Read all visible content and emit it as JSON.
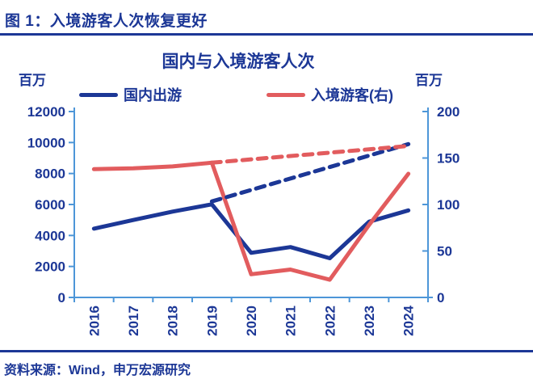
{
  "header": {
    "title": "图 1：入境游客人次恢复更好"
  },
  "footer": {
    "source": "资料来源：Wind，申万宏源研究"
  },
  "colors": {
    "navy": "#1C3796",
    "red": "#E25C5E",
    "axis": "#4D96D8",
    "rule": "#1C3796"
  },
  "chart_data": {
    "type": "line",
    "title": "国内与入境游客人次",
    "categories": [
      "2016",
      "2017",
      "2018",
      "2019",
      "2020",
      "2021",
      "2022",
      "2023",
      "2024"
    ],
    "left_axis": {
      "unit": "百万",
      "min": 0,
      "max": 12000,
      "ticks": [
        12000,
        10000,
        8000,
        6000,
        4000,
        2000,
        0
      ]
    },
    "right_axis": {
      "unit": "百万",
      "min": 0,
      "max": 200,
      "ticks": [
        200,
        150,
        100,
        50,
        0
      ]
    },
    "axis_color": "#4D96D8",
    "grid": false,
    "legend_position": "top",
    "legend": [
      {
        "label": "国内出游",
        "color": "#1C3796"
      },
      {
        "label": "入境游客(右)",
        "color": "#E25C5E"
      }
    ],
    "series": [
      {
        "id": "domestic-actual",
        "name": "国内出游",
        "axis": "left",
        "line": "solid",
        "color": "#1C3796",
        "x": [
          "2016",
          "2017",
          "2018",
          "2019",
          "2020",
          "2021",
          "2022",
          "2023",
          "2024"
        ],
        "values": [
          4440,
          5000,
          5540,
          6010,
          2880,
          3250,
          2530,
          4890,
          5620
        ]
      },
      {
        "id": "inbound-actual",
        "name": "入境游客(右)",
        "axis": "right",
        "line": "solid",
        "color": "#E25C5E",
        "x": [
          "2016",
          "2017",
          "2018",
          "2019",
          "2020",
          "2021",
          "2022",
          "2023",
          "2024"
        ],
        "values": [
          138,
          139,
          141,
          145,
          25,
          30,
          19,
          78,
          133
        ]
      },
      {
        "id": "domestic-trend",
        "name": "国内出游(趋势外推)",
        "axis": "left",
        "line": "dashed",
        "color": "#1C3796",
        "x": [
          "2019",
          "2024"
        ],
        "values": [
          6200,
          9900
        ]
      },
      {
        "id": "inbound-trend",
        "name": "入境游客(趋势外推)",
        "axis": "right",
        "line": "dashed",
        "color": "#E25C5E",
        "x": [
          "2019",
          "2024"
        ],
        "values": [
          145,
          163
        ]
      }
    ]
  }
}
